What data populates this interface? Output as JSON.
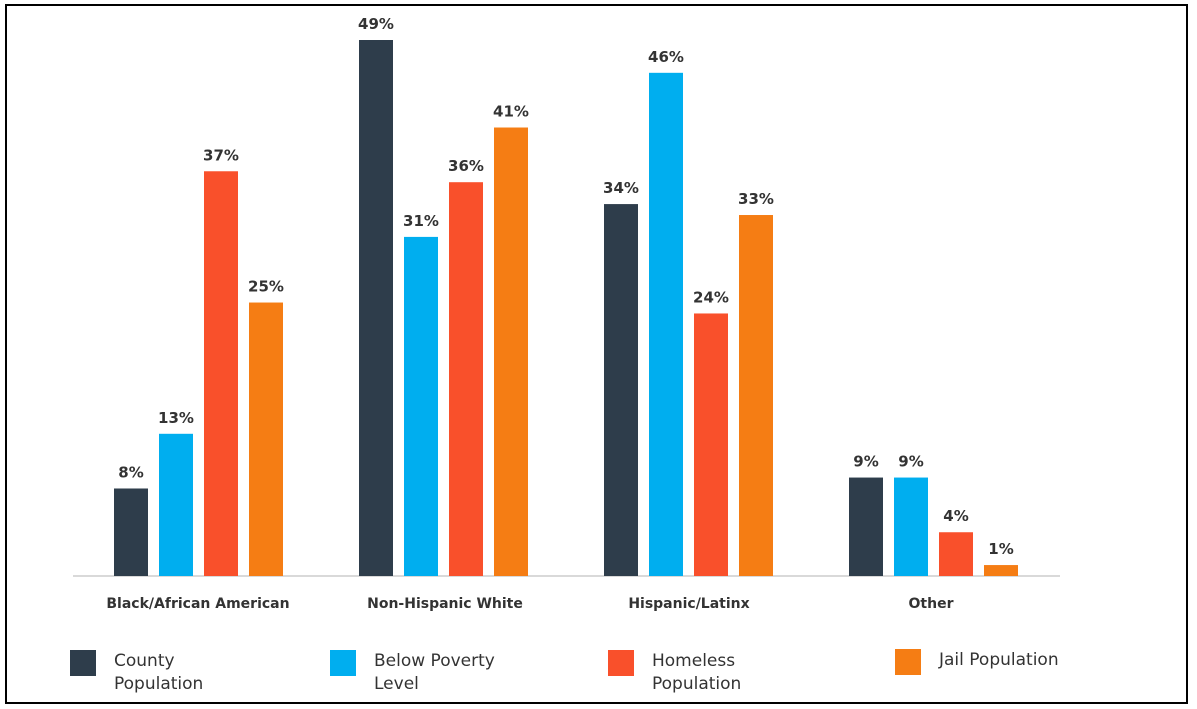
{
  "chart_data": {
    "type": "bar",
    "title": "",
    "xlabel": "",
    "ylabel": "",
    "ylim": [
      0,
      49
    ],
    "grid": false,
    "legend_position": "bottom",
    "categories": [
      "Black/African American",
      "Non-Hispanic White",
      "Hispanic/Latinx",
      "Other"
    ],
    "series": [
      {
        "name": "County Population",
        "legend_label": "County\nPopulation",
        "color": "#2e3d4b",
        "values": [
          8,
          49,
          34,
          9
        ],
        "labels": [
          "8%",
          "49%",
          "34%",
          "9%"
        ]
      },
      {
        "name": "Below Poverty Level",
        "legend_label": "Below Poverty\nLevel",
        "color": "#00aeef",
        "values": [
          13,
          31,
          46,
          9
        ],
        "labels": [
          "13%",
          "31%",
          "46%",
          "9%"
        ]
      },
      {
        "name": "Homeless Population",
        "legend_label": "Homeless\nPopulation",
        "color": "#f9502b",
        "values": [
          37,
          36,
          24,
          4
        ],
        "labels": [
          "37%",
          "36%",
          "24%",
          "4%"
        ]
      },
      {
        "name": "Jail Population",
        "legend_label": "Jail Population",
        "color": "#f57d14",
        "values": [
          25,
          41,
          33,
          1
        ],
        "labels": [
          "25%",
          "41%",
          "33%",
          "1%"
        ]
      }
    ]
  }
}
